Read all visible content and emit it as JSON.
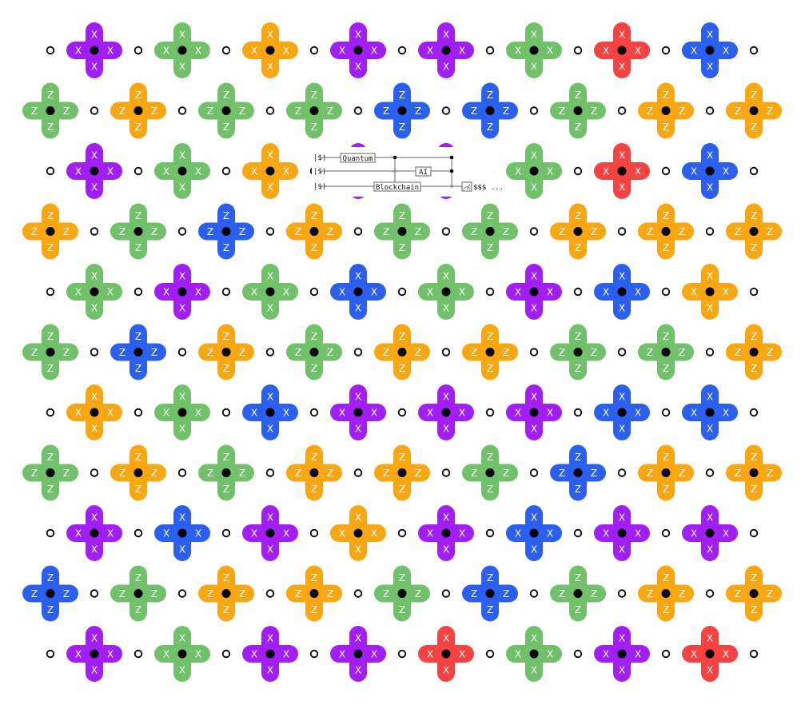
{
  "colors": {
    "green": "#70c16a",
    "orange": "#f8a712",
    "purple": "#a11ef7",
    "blue": "#2b5ff0",
    "red": "#f74242",
    "node": "#000000",
    "background": "#ffffff"
  },
  "lattice": {
    "row_types": [
      "X",
      "Z",
      "X",
      "Z",
      "X",
      "Z",
      "X",
      "Z",
      "X",
      "Z",
      "X"
    ],
    "rows": [
      [
        "purple",
        "green",
        "orange",
        "purple",
        "purple",
        "green",
        "red",
        "blue"
      ],
      [
        "green",
        "orange",
        "green",
        "green",
        "blue",
        "blue",
        "green",
        "orange",
        "orange"
      ],
      [
        "purple",
        "green",
        "orange",
        "purple",
        "purple",
        "green",
        "red",
        "blue"
      ],
      [
        "orange",
        "green",
        "blue",
        "orange",
        "green",
        "green",
        "orange",
        "orange",
        "orange"
      ],
      [
        "green",
        "purple",
        "green",
        "blue",
        "green",
        "purple",
        "blue",
        "orange"
      ],
      [
        "green",
        "blue",
        "orange",
        "green",
        "orange",
        "orange",
        "green",
        "green",
        "orange"
      ],
      [
        "orange",
        "green",
        "blue",
        "purple",
        "purple",
        "purple",
        "blue",
        "blue"
      ],
      [
        "green",
        "orange",
        "green",
        "orange",
        "orange",
        "green",
        "blue",
        "orange",
        "orange"
      ],
      [
        "purple",
        "blue",
        "purple",
        "orange",
        "purple",
        "blue",
        "purple",
        "purple"
      ],
      [
        "blue",
        "green",
        "orange",
        "orange",
        "green",
        "blue",
        "green",
        "orange",
        "orange"
      ],
      [
        "purple",
        "green",
        "purple",
        "purple",
        "red",
        "green",
        "purple",
        "red"
      ]
    ]
  },
  "circuit": {
    "wires": [
      {
        "ket": "|$⟩",
        "gate": "Quantum"
      },
      {
        "ket": "|$⟩",
        "gate": "AI"
      },
      {
        "ket": "|$⟩",
        "gate": "Blockchain"
      }
    ],
    "output": "$$$ ..."
  }
}
